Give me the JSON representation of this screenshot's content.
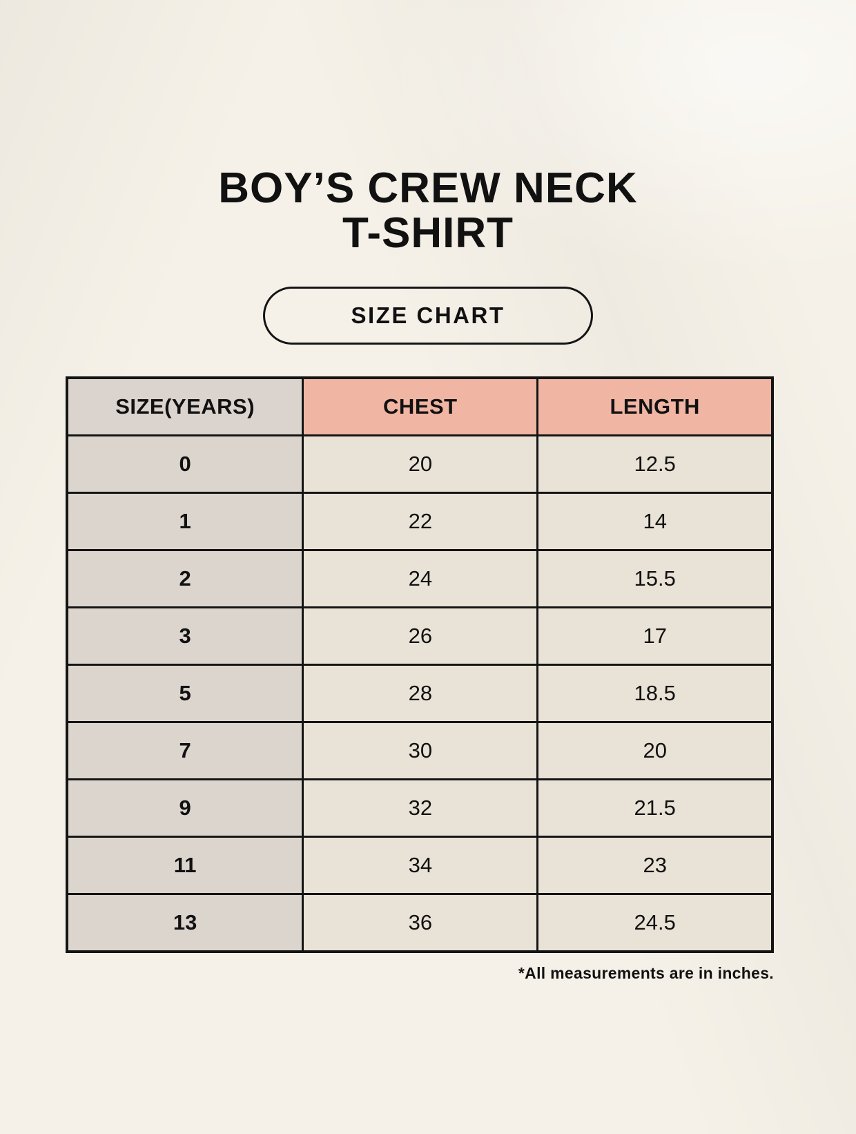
{
  "page": {
    "title_line1": "BOY’S CREW NECK",
    "title_line2": "T-SHIRT",
    "badge_label": "SIZE CHART",
    "footnote": "*All measurements are in inches."
  },
  "colors": {
    "background": "#f5f1e8",
    "header_size_bg": "#dbd4ce",
    "header_measure_bg": "#f0b5a3",
    "row_label_bg": "#dcd5ce",
    "row_value_bg": "#e9e2d6",
    "border": "#141414",
    "text": "#111111"
  },
  "chart_data": {
    "type": "table",
    "title": "BOY’S CREW NECK T-SHIRT — SIZE CHART",
    "units": "inches",
    "columns": [
      "SIZE(YEARS)",
      "CHEST",
      "LENGTH"
    ],
    "rows": [
      [
        "0",
        "20",
        "12.5"
      ],
      [
        "1",
        "22",
        "14"
      ],
      [
        "2",
        "24",
        "15.5"
      ],
      [
        "3",
        "26",
        "17"
      ],
      [
        "5",
        "28",
        "18.5"
      ],
      [
        "7",
        "30",
        "20"
      ],
      [
        "9",
        "32",
        "21.5"
      ],
      [
        "11",
        "34",
        "23"
      ],
      [
        "13",
        "36",
        "24.5"
      ]
    ]
  }
}
